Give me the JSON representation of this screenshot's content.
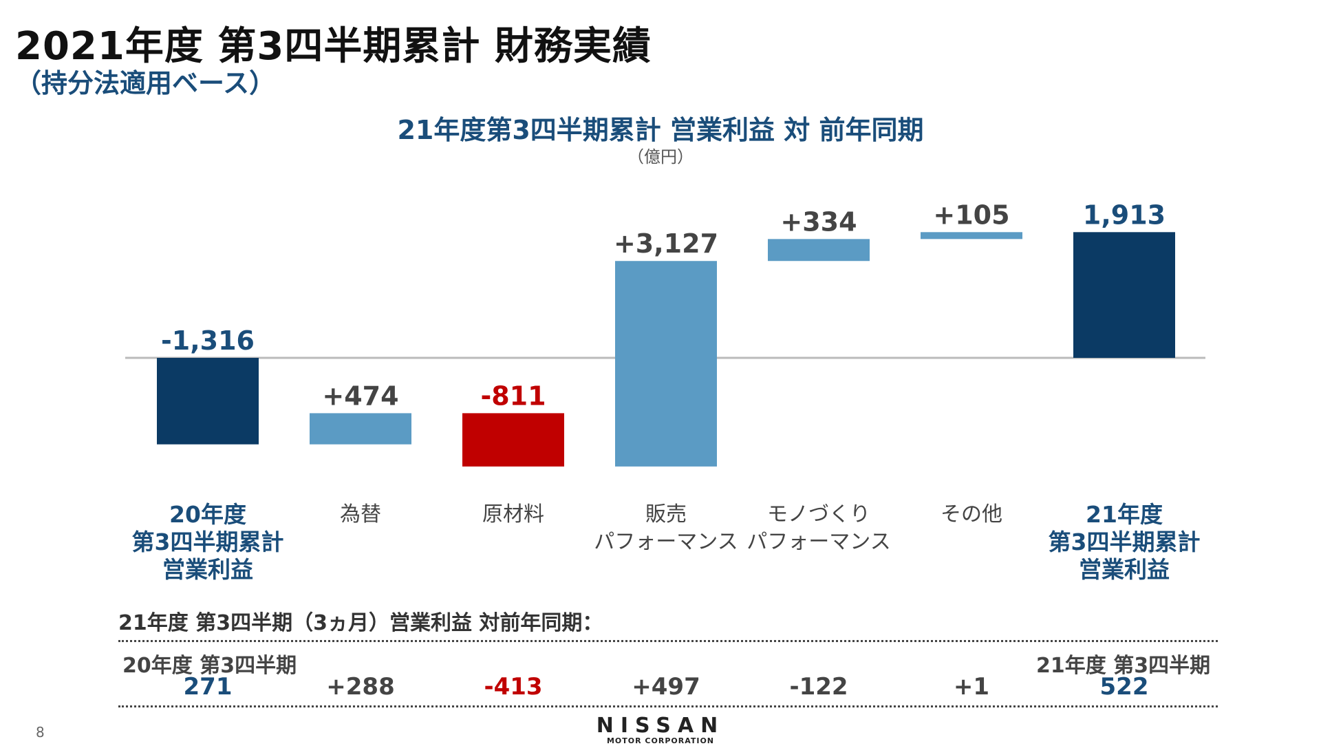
{
  "header": {
    "title": "2021年度 第3四半期累計 財務実績",
    "subtitle": "（持分法適用ベース）"
  },
  "colors": {
    "dark_blue": "#0b3a64",
    "light_blue": "#5b9bc4",
    "red": "#c00000",
    "baseline": "#bbbbbb",
    "text_blue": "#1a4d7a"
  },
  "chart_data": {
    "type": "bar",
    "subtype": "waterfall",
    "title": "21年度第3四半期累計 営業利益 対 前年同期",
    "unit": "（億円）",
    "categories": [
      "20年度\n第3四半期累計\n営業利益",
      "為替",
      "原材料",
      "販売\nパフォーマンス",
      "モノづくり\nパフォーマンス",
      "その他",
      "21年度\n第3四半期累計\n営業利益"
    ],
    "values": [
      -1316,
      474,
      -811,
      3127,
      334,
      105,
      1913
    ],
    "labels": [
      "-1,316",
      "+474",
      "-811",
      "+3,127",
      "+334",
      "+105",
      "1,913"
    ],
    "kinds": [
      "total",
      "delta",
      "delta",
      "delta",
      "delta",
      "delta",
      "total"
    ]
  },
  "q3": {
    "heading": "21年度 第3四半期（3ヵ月）営業利益 対前年同期：",
    "start_label": "20年度 第3四半期",
    "end_label": "21年度 第3四半期",
    "values": [
      "271",
      "+288",
      "-413",
      "+497",
      "-122",
      "+1",
      "522"
    ]
  },
  "footer": {
    "page": "8",
    "logo_name": "NISSAN",
    "logo_sub": "MOTOR CORPORATION"
  }
}
